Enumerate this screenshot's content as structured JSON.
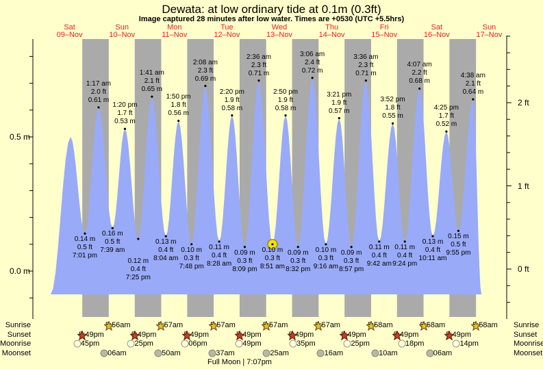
{
  "title": "Dewata: at low ordinary tide at 0.1m (0.3ft)",
  "subtitle": "Image captured 28 minutes after low water. Times are +0530 (UTC +5.5hrs)",
  "colors": {
    "background": "#ffffcc",
    "night_band": "#aaaaaa",
    "tide_fill": "#99aaf8",
    "day_label": "#e62222",
    "axis": "#000000",
    "sunrise_star_fill": "#d4cd1f",
    "sunrise_star_stroke": "#7d3a10",
    "sunset_star_fill": "#cf3d20",
    "sunset_star_stroke": "#5d1606",
    "moonrise_fill": "#ffffdd",
    "moonrise_stroke": "#999988",
    "moonset_fill": "#b8b8a4",
    "moonset_stroke": "#88887a",
    "marker_fill": "#f2e205",
    "marker_stroke": "#8a7d00"
  },
  "chart_data": {
    "type": "area",
    "title": "Dewata: at low ordinary tide at 0.1m (0.3ft)",
    "x_axis_days": [
      {
        "weekday": "Sat",
        "date": "09–Nov"
      },
      {
        "weekday": "Sun",
        "date": "10–Nov"
      },
      {
        "weekday": "Mon",
        "date": "11–Nov"
      },
      {
        "weekday": "Tue",
        "date": "12–Nov"
      },
      {
        "weekday": "Wed",
        "date": "13–Nov"
      },
      {
        "weekday": "Thu",
        "date": "14–Nov"
      },
      {
        "weekday": "Fri",
        "date": "15–Nov"
      },
      {
        "weekday": "Sat",
        "date": "16–Nov"
      },
      {
        "weekday": "Sun",
        "date": "17–Nov"
      }
    ],
    "y_axis": {
      "left": {
        "unit": "m",
        "labeled_ticks": [
          {
            "label": "0.5 m",
            "value_m": 0.5
          },
          {
            "label": "0.0 m",
            "value_m": 0.0
          }
        ]
      },
      "right": {
        "unit": "ft",
        "labeled_ticks": [
          {
            "label": "2 ft",
            "value_ft": 2
          },
          {
            "label": "1 ft",
            "value_ft": 1
          },
          {
            "label": "0 ft",
            "value_ft": 0
          }
        ]
      }
    },
    "tide_events": [
      {
        "day": 0,
        "time": "12:26 pm",
        "type": "high",
        "height_m": 0.5,
        "height_ft": 1.6,
        "labeled": false
      },
      {
        "day": 0,
        "time": "7:01 pm",
        "type": "low",
        "height_m": 0.14,
        "height_ft": 0.5
      },
      {
        "day": 1,
        "time": "1:17 am",
        "type": "high",
        "height_m": 0.61,
        "height_ft": 2.0
      },
      {
        "day": 1,
        "time": "7:39 am",
        "type": "low",
        "height_m": 0.16,
        "height_ft": 0.5
      },
      {
        "day": 1,
        "time": "1:20 pm",
        "type": "high",
        "height_m": 0.53,
        "height_ft": 1.7
      },
      {
        "day": 1,
        "time": "7:25 pm",
        "type": "low",
        "height_m": 0.12,
        "height_ft": 0.4,
        "label_dy": 24
      },
      {
        "day": 2,
        "time": "1:41 am",
        "type": "high",
        "height_m": 0.65,
        "height_ft": 2.1
      },
      {
        "day": 2,
        "time": "8:04 am",
        "type": "low",
        "height_m": 0.13,
        "height_ft": 0.4
      },
      {
        "day": 2,
        "time": "1:50 pm",
        "type": "high",
        "height_m": 0.56,
        "height_ft": 1.8
      },
      {
        "day": 2,
        "time": "7:48 pm",
        "type": "low",
        "height_m": 0.1,
        "height_ft": 0.3
      },
      {
        "day": 3,
        "time": "2:08 am",
        "type": "high",
        "height_m": 0.69,
        "height_ft": 2.3
      },
      {
        "day": 3,
        "time": "8:28 am",
        "type": "low",
        "height_m": 0.11,
        "height_ft": 0.4
      },
      {
        "day": 3,
        "time": "2:20 pm",
        "type": "high",
        "height_m": 0.58,
        "height_ft": 1.9
      },
      {
        "day": 3,
        "time": "8:09 pm",
        "type": "low",
        "height_m": 0.09,
        "height_ft": 0.3
      },
      {
        "day": 4,
        "time": "2:36 am",
        "type": "high",
        "height_m": 0.71,
        "height_ft": 2.3
      },
      {
        "day": 4,
        "time": "8:51 am",
        "type": "low",
        "height_m": 0.1,
        "height_ft": 0.3,
        "marker": true
      },
      {
        "day": 4,
        "time": "2:50 pm",
        "type": "high",
        "height_m": 0.58,
        "height_ft": 1.9
      },
      {
        "day": 4,
        "time": "8:32 pm",
        "type": "low",
        "height_m": 0.09,
        "height_ft": 0.3
      },
      {
        "day": 5,
        "time": "3:06 am",
        "type": "high",
        "height_m": 0.72,
        "height_ft": 2.4
      },
      {
        "day": 5,
        "time": "9:16 am",
        "type": "low",
        "height_m": 0.1,
        "height_ft": 0.3
      },
      {
        "day": 5,
        "time": "3:21 pm",
        "type": "high",
        "height_m": 0.57,
        "height_ft": 1.9
      },
      {
        "day": 5,
        "time": "8:57 pm",
        "type": "low",
        "height_m": 0.09,
        "height_ft": 0.3
      },
      {
        "day": 6,
        "time": "3:36 am",
        "type": "high",
        "height_m": 0.71,
        "height_ft": 2.3
      },
      {
        "day": 6,
        "time": "9:42 am",
        "type": "low",
        "height_m": 0.11,
        "height_ft": 0.4
      },
      {
        "day": 6,
        "time": "3:52 pm",
        "type": "high",
        "height_m": 0.55,
        "height_ft": 1.8
      },
      {
        "day": 6,
        "time": "9:24 pm",
        "type": "low",
        "height_m": 0.11,
        "height_ft": 0.4
      },
      {
        "day": 7,
        "time": "4:07 am",
        "type": "high",
        "height_m": 0.68,
        "height_ft": 2.2
      },
      {
        "day": 7,
        "time": "10:11 am",
        "type": "low",
        "height_m": 0.13,
        "height_ft": 0.4
      },
      {
        "day": 7,
        "time": "4:25 pm",
        "type": "high",
        "height_m": 0.52,
        "height_ft": 1.7
      },
      {
        "day": 7,
        "time": "9:55 pm",
        "type": "low",
        "height_m": 0.15,
        "height_ft": 0.5
      },
      {
        "day": 8,
        "time": "4:38 am",
        "type": "high",
        "height_m": 0.64,
        "height_ft": 2.1
      }
    ]
  },
  "astro": {
    "row_labels": [
      "Sunrise",
      "Sunset",
      "Moonrise",
      "Moonset"
    ],
    "sunrise": [
      {
        "day": 1,
        "time": "5:56am"
      },
      {
        "day": 2,
        "time": "5:57am"
      },
      {
        "day": 3,
        "time": "5:57am"
      },
      {
        "day": 4,
        "time": "5:57am"
      },
      {
        "day": 5,
        "time": "5:57am"
      },
      {
        "day": 6,
        "time": "5:58am"
      },
      {
        "day": 7,
        "time": "5:58am"
      },
      {
        "day": 8,
        "time": "5:58am"
      }
    ],
    "sunset": [
      {
        "day": 0,
        "time": "5:49pm"
      },
      {
        "day": 1,
        "time": "5:49pm"
      },
      {
        "day": 2,
        "time": "5:49pm"
      },
      {
        "day": 3,
        "time": "5:49pm"
      },
      {
        "day": 4,
        "time": "5:49pm"
      },
      {
        "day": 5,
        "time": "5:49pm"
      },
      {
        "day": 6,
        "time": "5:49pm"
      },
      {
        "day": 7,
        "time": "5:49pm"
      }
    ],
    "moonrise": [
      {
        "day": 0,
        "time": "3:45pm"
      },
      {
        "day": 1,
        "time": "4:25pm"
      },
      {
        "day": 2,
        "time": "5:06pm"
      },
      {
        "day": 3,
        "time": "5:49pm"
      },
      {
        "day": 4,
        "time": "6:35pm"
      },
      {
        "day": 5,
        "time": "7:25pm"
      },
      {
        "day": 6,
        "time": "8:18pm"
      },
      {
        "day": 7,
        "time": "9:14pm"
      }
    ],
    "moonset": [
      {
        "day": 1,
        "time": "4:06am"
      },
      {
        "day": 2,
        "time": "4:50am"
      },
      {
        "day": 3,
        "time": "5:37am"
      },
      {
        "day": 4,
        "time": "6:25am"
      },
      {
        "day": 5,
        "time": "7:16am"
      },
      {
        "day": 6,
        "time": "8:10am"
      },
      {
        "day": 7,
        "time": "9:06am"
      }
    ],
    "moon_phase": "Full Moon | 7:07pm"
  }
}
